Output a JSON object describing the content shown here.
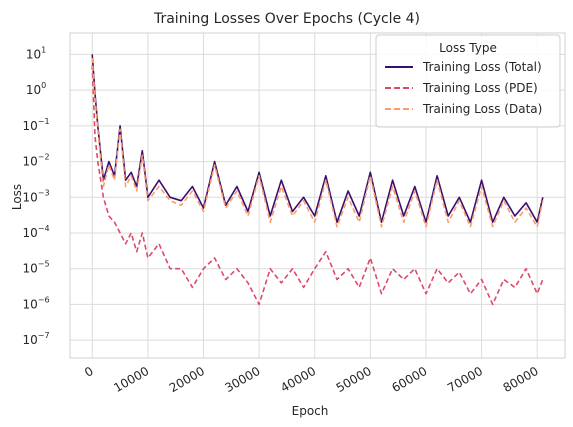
{
  "chart_data": {
    "type": "line",
    "title": "Training Losses Over Epochs (Cycle 4)",
    "xlabel": "Epoch",
    "ylabel": "Loss",
    "yscale": "log",
    "xlim": [
      -4000,
      85000
    ],
    "ylim_exponent": [
      -7.5,
      1.6
    ],
    "grid": true,
    "x_ticks": [
      0,
      10000,
      20000,
      30000,
      40000,
      50000,
      60000,
      70000,
      80000
    ],
    "x_tick_labels": [
      "0",
      "10000",
      "20000",
      "30000",
      "40000",
      "50000",
      "60000",
      "70000",
      "80000"
    ],
    "y_tick_exponents": [
      1,
      0,
      -1,
      -2,
      -3,
      -4,
      -5,
      -6,
      -7
    ],
    "legend": {
      "title": "Loss Type",
      "placement": "upper right"
    },
    "series": [
      {
        "name": "Training Loss (Total)",
        "color": "#3b0f70",
        "dash": "solid",
        "x": [
          0,
          500,
          1000,
          2000,
          3000,
          4000,
          5000,
          6000,
          7000,
          8000,
          9000,
          10000,
          12000,
          14000,
          16000,
          18000,
          20000,
          22000,
          24000,
          26000,
          28000,
          30000,
          32000,
          34000,
          36000,
          38000,
          40000,
          42000,
          44000,
          46000,
          48000,
          50000,
          52000,
          54000,
          56000,
          58000,
          60000,
          62000,
          64000,
          66000,
          68000,
          70000,
          72000,
          74000,
          76000,
          78000,
          80000,
          81000
        ],
        "y": [
          10,
          0.8,
          0.1,
          0.003,
          0.01,
          0.004,
          0.1,
          0.003,
          0.005,
          0.002,
          0.02,
          0.001,
          0.003,
          0.001,
          0.0008,
          0.002,
          0.0005,
          0.01,
          0.0006,
          0.002,
          0.0004,
          0.005,
          0.0003,
          0.003,
          0.0004,
          0.001,
          0.0003,
          0.004,
          0.0002,
          0.0015,
          0.0003,
          0.005,
          0.0002,
          0.003,
          0.0003,
          0.002,
          0.0002,
          0.004,
          0.0003,
          0.001,
          0.0002,
          0.003,
          0.0002,
          0.001,
          0.0003,
          0.0007,
          0.0002,
          0.001
        ]
      },
      {
        "name": "Training Loss (PDE)",
        "color": "#dd4a68",
        "dash": "dashed",
        "x": [
          0,
          500,
          1000,
          2000,
          3000,
          4000,
          5000,
          6000,
          7000,
          8000,
          9000,
          10000,
          12000,
          14000,
          16000,
          18000,
          20000,
          22000,
          24000,
          26000,
          28000,
          30000,
          32000,
          34000,
          36000,
          38000,
          40000,
          42000,
          44000,
          46000,
          48000,
          50000,
          52000,
          54000,
          56000,
          58000,
          60000,
          62000,
          64000,
          66000,
          68000,
          70000,
          72000,
          74000,
          76000,
          78000,
          80000,
          81000
        ],
        "y": [
          5,
          0.05,
          0.01,
          0.001,
          0.0003,
          0.0002,
          0.0001,
          5e-05,
          0.0001,
          3e-05,
          0.0001,
          2e-05,
          5e-05,
          1e-05,
          1e-05,
          3e-06,
          1e-05,
          2e-05,
          5e-06,
          1e-05,
          4e-06,
          1e-06,
          1e-05,
          4e-06,
          1e-05,
          3e-06,
          1e-05,
          3e-05,
          5e-06,
          1e-05,
          3e-06,
          2e-05,
          2e-06,
          1e-05,
          5e-06,
          1e-05,
          2e-06,
          1e-05,
          4e-06,
          8e-06,
          2e-06,
          5e-06,
          1e-06,
          5e-06,
          3e-06,
          1e-05,
          2e-06,
          5e-06
        ]
      },
      {
        "name": "Training Loss (Data)",
        "color": "#fc9c6c",
        "dash": "dashed",
        "x": [
          0,
          500,
          1000,
          2000,
          3000,
          4000,
          5000,
          6000,
          7000,
          8000,
          9000,
          10000,
          12000,
          14000,
          16000,
          18000,
          20000,
          22000,
          24000,
          26000,
          28000,
          30000,
          32000,
          34000,
          36000,
          38000,
          40000,
          42000,
          44000,
          46000,
          48000,
          50000,
          52000,
          54000,
          56000,
          58000,
          60000,
          62000,
          64000,
          66000,
          68000,
          70000,
          72000,
          74000,
          76000,
          78000,
          80000,
          81000
        ],
        "y": [
          8,
          0.6,
          0.08,
          0.002,
          0.008,
          0.003,
          0.08,
          0.002,
          0.004,
          0.0015,
          0.015,
          0.0008,
          0.002,
          0.0008,
          0.0006,
          0.0015,
          0.0004,
          0.008,
          0.0005,
          0.0015,
          0.0003,
          0.004,
          0.0002,
          0.002,
          0.0003,
          0.0008,
          0.0002,
          0.003,
          0.00015,
          0.001,
          0.0002,
          0.004,
          0.00015,
          0.002,
          0.0002,
          0.0015,
          0.00015,
          0.003,
          0.0002,
          0.0008,
          0.00015,
          0.002,
          0.00015,
          0.0008,
          0.0002,
          0.0005,
          0.00015,
          0.0008
        ]
      }
    ]
  }
}
